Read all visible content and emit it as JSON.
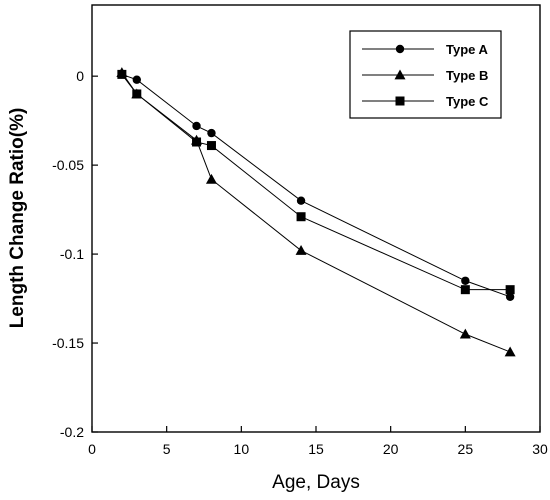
{
  "chart_data": {
    "type": "line",
    "title": "",
    "xlabel": "Age,  Days",
    "ylabel": "Length Change Ratio(%)",
    "xlim": [
      0,
      30
    ],
    "ylim": [
      -0.2,
      0.04
    ],
    "x_ticks": [
      0,
      5,
      10,
      15,
      20,
      25,
      30
    ],
    "x_tick_labels": [
      "0",
      "5",
      "10",
      "15",
      "20",
      "25",
      "30"
    ],
    "y_ticks": [
      0,
      -0.05,
      -0.1,
      -0.15,
      -0.2
    ],
    "y_tick_labels": [
      "0",
      "-0.05",
      "-0.1",
      "-0.15",
      "-0.2"
    ],
    "grid": false,
    "legend_position": "top-right",
    "series": [
      {
        "name": "Type A",
        "marker": "circle",
        "color": "#000000",
        "x": [
          2,
          3,
          7,
          8,
          14,
          25,
          28
        ],
        "y": [
          0.001,
          -0.002,
          -0.028,
          -0.032,
          -0.07,
          -0.115,
          -0.124
        ]
      },
      {
        "name": "Type B",
        "marker": "triangle",
        "color": "#000000",
        "x": [
          2,
          3,
          7,
          8,
          14,
          25,
          28
        ],
        "y": [
          0.002,
          -0.01,
          -0.036,
          -0.058,
          -0.098,
          -0.145,
          -0.155
        ]
      },
      {
        "name": "Type C",
        "marker": "square",
        "color": "#000000",
        "x": [
          2,
          3,
          7,
          8,
          14,
          25,
          28
        ],
        "y": [
          0.001,
          -0.01,
          -0.037,
          -0.039,
          -0.079,
          -0.12,
          -0.12
        ]
      }
    ]
  }
}
